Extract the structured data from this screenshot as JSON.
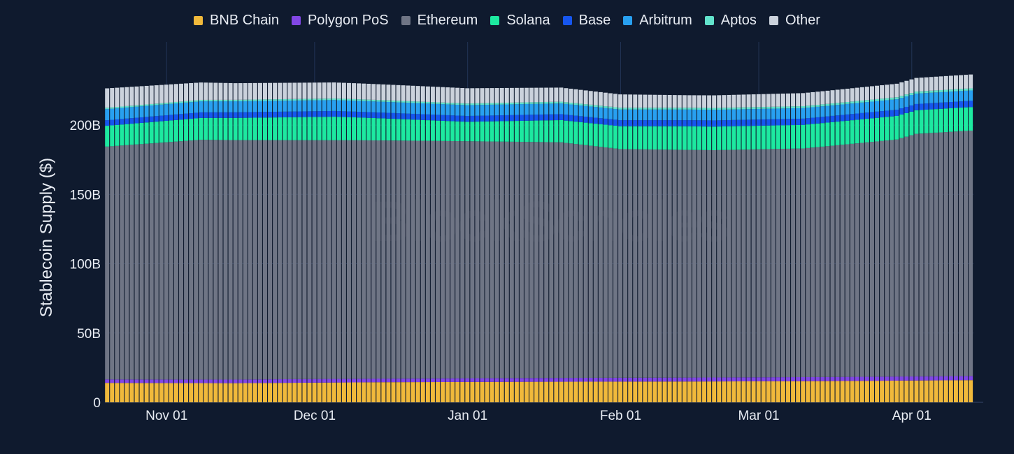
{
  "watermark": "BlockScholes",
  "chart_data": {
    "type": "bar",
    "stacked": true,
    "ylabel": "Stablecoin Supply ($)",
    "ylim": [
      0,
      260
    ],
    "y_unit": "B",
    "yticks": [
      0,
      50,
      100,
      150,
      200
    ],
    "ytick_labels": [
      "0",
      "50B",
      "100B",
      "150B",
      "200B"
    ],
    "grid": true,
    "legend_position": "top",
    "x_range": [
      "2024-10-20",
      "2025-04-13"
    ],
    "xticks": [
      {
        "label": "Nov 01",
        "date": "2024-11-01"
      },
      {
        "label": "Dec 01",
        "date": "2024-12-01"
      },
      {
        "label": "Jan 01",
        "date": "2025-01-01"
      },
      {
        "label": "Feb 01",
        "date": "2025-02-01"
      },
      {
        "label": "Mar 01",
        "date": "2025-03-01"
      },
      {
        "label": "Apr 01",
        "date": "2025-04-01"
      }
    ],
    "series": [
      {
        "name": "BNB Chain",
        "color": "#f0b93b",
        "anchors": [
          [
            "2024-10-20",
            14.0
          ],
          [
            "2024-11-15",
            13.8
          ],
          [
            "2024-12-15",
            14.5
          ],
          [
            "2025-01-15",
            14.8
          ],
          [
            "2025-02-15",
            15.0
          ],
          [
            "2025-03-15",
            15.3
          ],
          [
            "2025-04-13",
            16.0
          ]
        ]
      },
      {
        "name": "Polygon PoS",
        "color": "#8247e5",
        "anchors": [
          [
            "2024-10-20",
            2.5
          ],
          [
            "2025-01-01",
            2.7
          ],
          [
            "2025-04-13",
            3.0
          ]
        ]
      },
      {
        "name": "Ethereum",
        "color": "#6f7585",
        "anchors": [
          [
            "2024-10-20",
            168
          ],
          [
            "2024-11-08",
            173
          ],
          [
            "2024-12-10",
            172
          ],
          [
            "2025-01-01",
            171
          ],
          [
            "2025-01-20",
            170
          ],
          [
            "2025-02-01",
            165
          ],
          [
            "2025-02-20",
            164
          ],
          [
            "2025-03-10",
            165
          ],
          [
            "2025-03-29",
            171
          ],
          [
            "2025-04-02",
            175
          ],
          [
            "2025-04-13",
            177
          ]
        ]
      },
      {
        "name": "Solana",
        "color": "#1de9a0",
        "anchors": [
          [
            "2024-10-20",
            15
          ],
          [
            "2024-11-15",
            16
          ],
          [
            "2024-12-05",
            17
          ],
          [
            "2025-01-01",
            14
          ],
          [
            "2025-01-20",
            16
          ],
          [
            "2025-02-15",
            17
          ],
          [
            "2025-03-15",
            17
          ],
          [
            "2025-04-13",
            17
          ]
        ]
      },
      {
        "name": "Base",
        "color": "#1656ee",
        "anchors": [
          [
            "2024-10-20",
            4.0
          ],
          [
            "2025-01-01",
            4.2
          ],
          [
            "2025-03-01",
            4.5
          ],
          [
            "2025-04-13",
            4.5
          ]
        ]
      },
      {
        "name": "Arbitrum",
        "color": "#28a0f0",
        "anchors": [
          [
            "2024-10-20",
            8.0
          ],
          [
            "2025-01-01",
            7.8
          ],
          [
            "2025-04-13",
            7.5
          ]
        ]
      },
      {
        "name": "Aptos",
        "color": "#62e3cc",
        "anchors": [
          [
            "2024-10-20",
            1.0
          ],
          [
            "2025-04-13",
            1.5
          ]
        ]
      },
      {
        "name": "Other",
        "color": "#cbd2dc",
        "anchors": [
          [
            "2024-10-20",
            14
          ],
          [
            "2024-11-15",
            12
          ],
          [
            "2025-01-01",
            11
          ],
          [
            "2025-02-15",
            9
          ],
          [
            "2025-04-13",
            10
          ]
        ]
      }
    ]
  }
}
